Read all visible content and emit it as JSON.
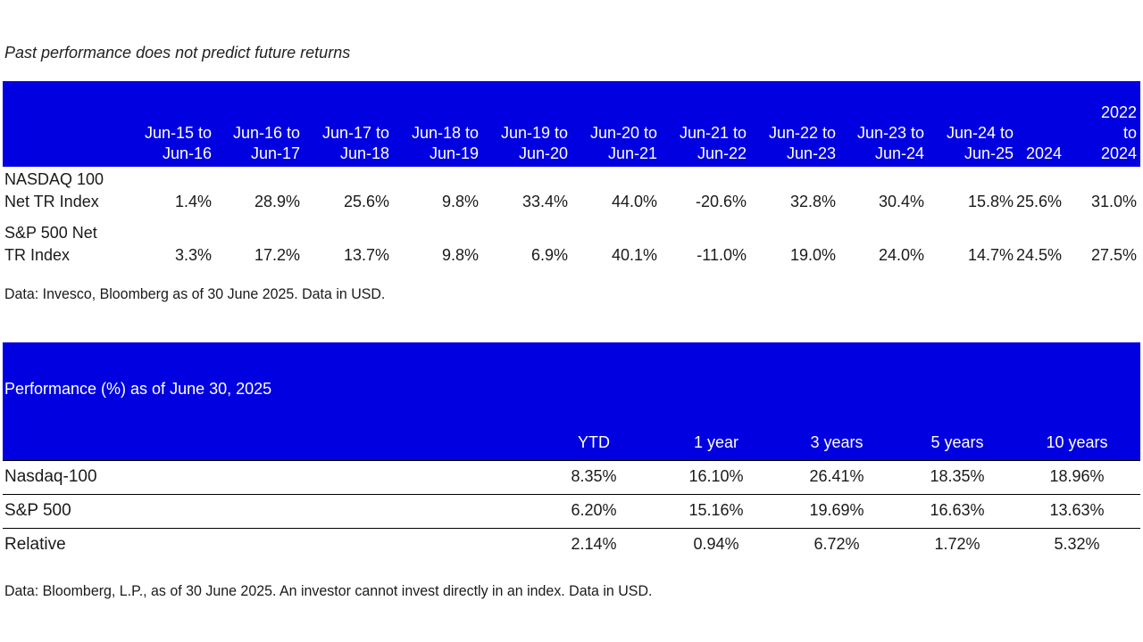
{
  "disclaimer": "Past performance does not predict future returns",
  "table1": {
    "header_colors": {
      "background": "#0000e0",
      "text": "#ffffff"
    },
    "columns": [
      [
        "Jun-15 to",
        "Jun-16"
      ],
      [
        "Jun-16 to",
        "Jun-17"
      ],
      [
        "Jun-17 to",
        "Jun-18"
      ],
      [
        "Jun-18 to",
        "Jun-19"
      ],
      [
        "Jun-19 to",
        "Jun-20"
      ],
      [
        "Jun-20 to",
        "Jun-21"
      ],
      [
        "Jun-21 to",
        "Jun-22"
      ],
      [
        "Jun-22 to",
        "Jun-23"
      ],
      [
        "Jun-23 to",
        "Jun-24"
      ],
      [
        "Jun-24 to",
        "Jun-25"
      ],
      [
        "2024"
      ],
      [
        "2022",
        "to",
        "2024"
      ]
    ],
    "rows": [
      {
        "label": [
          "NASDAQ 100",
          "Net TR Index"
        ],
        "values": [
          "1.4%",
          "28.9%",
          "25.6%",
          "9.8%",
          "33.4%",
          "44.0%",
          "-20.6%",
          "32.8%",
          "30.4%",
          "15.8%",
          "25.6%",
          "31.0%"
        ]
      },
      {
        "label": [
          "S&P 500 Net",
          "TR Index"
        ],
        "values": [
          "3.3%",
          "17.2%",
          "13.7%",
          "9.8%",
          "6.9%",
          "40.1%",
          "-11.0%",
          "19.0%",
          "24.0%",
          "14.7%",
          "24.5%",
          "27.5%"
        ]
      }
    ],
    "source": "Data: Invesco, Bloomberg as of 30 June 2025. Data in USD."
  },
  "table2": {
    "title": "Performance (%) as of June 30, 2025",
    "columns": [
      "YTD",
      "1 year",
      "3 years",
      "5 years",
      "10 years"
    ],
    "rows": [
      {
        "label": "Nasdaq-100",
        "values": [
          "8.35%",
          "16.10%",
          "26.41%",
          "18.35%",
          "18.96%"
        ]
      },
      {
        "label": "S&P 500",
        "values": [
          "6.20%",
          "15.16%",
          "19.69%",
          "16.63%",
          "13.63%"
        ]
      },
      {
        "label": "Relative",
        "values": [
          "2.14%",
          "0.94%",
          "6.72%",
          "1.72%",
          "5.32%"
        ]
      }
    ],
    "source": "Data: Bloomberg, L.P., as of 30 June 2025. An investor cannot invest directly in an index. Data in USD."
  }
}
